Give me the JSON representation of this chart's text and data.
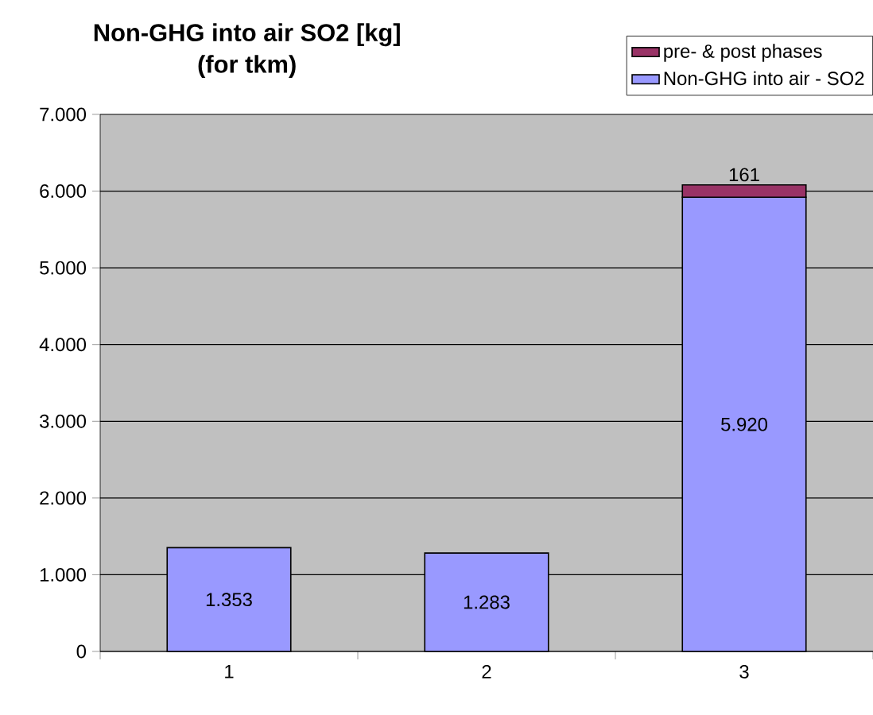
{
  "chart_data": {
    "type": "bar",
    "title": "Non-GHG into air SO2 [kg]",
    "subtitle": "(for tkm)",
    "categories": [
      "1",
      "2",
      "3"
    ],
    "series": [
      {
        "name": "Non-GHG into air - SO2",
        "color": "#9999ff",
        "values": [
          1353,
          1283,
          5920
        ],
        "value_labels": [
          "1.353",
          "1.283",
          "5.920"
        ]
      },
      {
        "name": "pre- & post phases",
        "color": "#993366",
        "values": [
          null,
          null,
          161
        ],
        "value_labels": [
          null,
          null,
          "161"
        ]
      }
    ],
    "stacked": true,
    "ylim": [
      0,
      7000
    ],
    "yticks": [
      {
        "value": 0,
        "label": "0"
      },
      {
        "value": 1000,
        "label": "1.000"
      },
      {
        "value": 2000,
        "label": "2.000"
      },
      {
        "value": 3000,
        "label": "3.000"
      },
      {
        "value": 4000,
        "label": "4.000"
      },
      {
        "value": 5000,
        "label": "5.000"
      },
      {
        "value": 6000,
        "label": "6.000"
      },
      {
        "value": 7000,
        "label": "7.000"
      }
    ],
    "grid": "y",
    "legend": "top right"
  }
}
